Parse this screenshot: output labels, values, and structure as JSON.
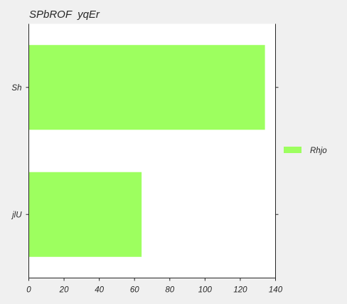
{
  "chart_data": {
    "type": "bar",
    "orientation": "horizontal",
    "title": "SPbROF  yqEr",
    "xlabel": "",
    "ylabel": "",
    "categories": [
      "Sh",
      "jlU"
    ],
    "series": [
      {
        "name": "Rhjo",
        "values": [
          134,
          64
        ],
        "color": "#9dff5f"
      }
    ],
    "xlim": [
      0,
      140
    ],
    "xticks": [
      0,
      20,
      40,
      60,
      80,
      100,
      120,
      140
    ],
    "grid": false,
    "legend_position": "center-right",
    "plot_background": "#ffffff",
    "figure_background": "#f0f0f0"
  }
}
